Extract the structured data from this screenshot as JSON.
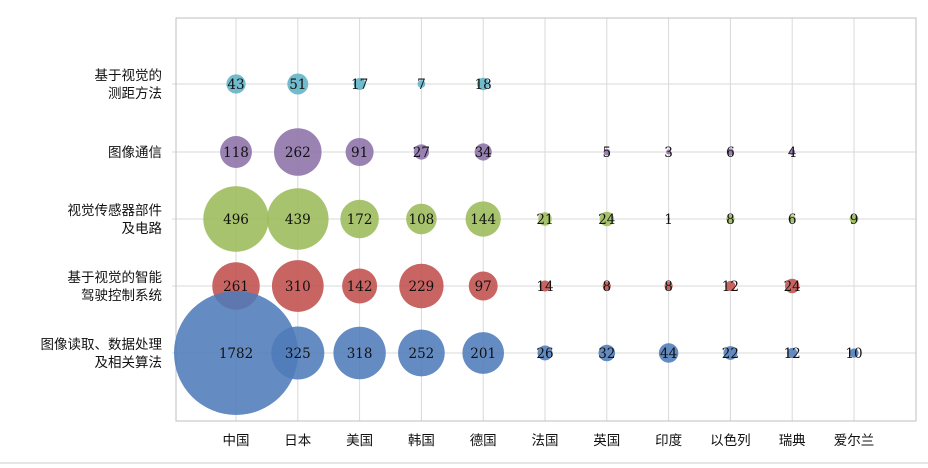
{
  "chart_data": {
    "type": "bubble",
    "title": "",
    "categories": [
      "中国",
      "日本",
      "美国",
      "韩国",
      "德国",
      "法国",
      "英国",
      "印度",
      "以色列",
      "瑞典",
      "爱尔兰"
    ],
    "series": [
      {
        "name": "基于视觉的测距方法",
        "label_lines": [
          "基于视觉的",
          "测距方法"
        ],
        "color": "#5fb3c7",
        "values": [
          43,
          51,
          17,
          7,
          18,
          null,
          null,
          null,
          null,
          null,
          null
        ]
      },
      {
        "name": "图像通信",
        "label_lines": [
          "图像通信"
        ],
        "color": "#8c71a8",
        "values": [
          118,
          262,
          91,
          27,
          34,
          null,
          5,
          3,
          6,
          4,
          null
        ]
      },
      {
        "name": "视觉传感器部件及电路",
        "label_lines": [
          "视觉传感器部件",
          "及电路"
        ],
        "color": "#9bbb59",
        "values": [
          496,
          439,
          172,
          108,
          144,
          21,
          24,
          1,
          8,
          6,
          9
        ]
      },
      {
        "name": "基于视觉的智能驾驶控制系统",
        "label_lines": [
          "基于视觉的智能",
          "驾驶控制系统"
        ],
        "color": "#c0504d",
        "values": [
          261,
          310,
          142,
          229,
          97,
          14,
          8,
          8,
          12,
          24,
          null
        ]
      },
      {
        "name": "图像读取、数据处理及相关算法",
        "label_lines": [
          "图像读取、数据处理",
          "及相关算法"
        ],
        "color": "#4f7bb9",
        "values": [
          1782,
          325,
          318,
          252,
          201,
          26,
          32,
          44,
          22,
          12,
          10
        ]
      }
    ],
    "grid": true,
    "legend": "none"
  }
}
